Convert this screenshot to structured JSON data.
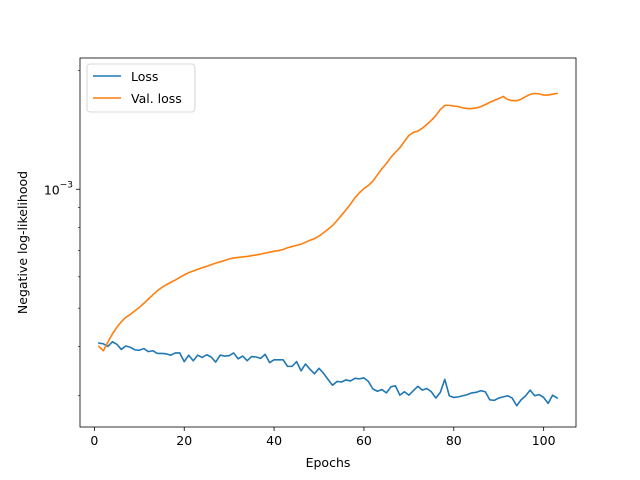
{
  "chart_data": {
    "type": "line",
    "title": "",
    "xlabel": "Epochs",
    "ylabel": "Negative log-likelihood",
    "yscale": "log",
    "xlim": [
      -3.2,
      107.2
    ],
    "ylim": [
      0.00025,
      0.00215
    ],
    "xticks": [
      0,
      20,
      40,
      60,
      80,
      100
    ],
    "xtick_labels": [
      "0",
      "20",
      "40",
      "60",
      "80",
      "100"
    ],
    "yticks": [
      0.001
    ],
    "ytick_labels": [
      {
        "base": "10",
        "exp": "−3"
      }
    ],
    "grid": false,
    "legend_position": "upper-left",
    "series": [
      {
        "name": "Loss",
        "color": "#1f77b4",
        "x": [
          1,
          2,
          3,
          4,
          5,
          6,
          7,
          8,
          9,
          10,
          11,
          12,
          13,
          14,
          15,
          16,
          17,
          18,
          19,
          20,
          21,
          22,
          23,
          24,
          25,
          26,
          27,
          28,
          29,
          30,
          31,
          32,
          33,
          34,
          35,
          36,
          37,
          38,
          39,
          40,
          41,
          42,
          43,
          44,
          45,
          46,
          47,
          48,
          49,
          50,
          51,
          52,
          53,
          54,
          55,
          56,
          57,
          58,
          59,
          60,
          61,
          62,
          63,
          64,
          65,
          66,
          67,
          68,
          69,
          70,
          71,
          72,
          73,
          74,
          75,
          76,
          77,
          78,
          79,
          80,
          81,
          82,
          83,
          84,
          85,
          86,
          87,
          88,
          89,
          90,
          91,
          92,
          93,
          94,
          95,
          96,
          97,
          98,
          99,
          100,
          101,
          102,
          103
        ],
        "values": [
          0.000408,
          0.000406,
          0.0004,
          0.000411,
          0.000405,
          0.000393,
          0.000401,
          0.000398,
          0.000392,
          0.000391,
          0.000395,
          0.000388,
          0.00039,
          0.000384,
          0.000384,
          0.000383,
          0.00038,
          0.000385,
          0.000385,
          0.000366,
          0.00038,
          0.000368,
          0.00038,
          0.000375,
          0.000381,
          0.000376,
          0.000365,
          0.00038,
          0.000378,
          0.000379,
          0.000385,
          0.000372,
          0.000378,
          0.000368,
          0.000377,
          0.000376,
          0.000373,
          0.000382,
          0.000364,
          0.00037,
          0.00037,
          0.00037,
          0.000356,
          0.000356,
          0.000366,
          0.000347,
          0.000361,
          0.00035,
          0.000341,
          0.000352,
          0.000342,
          0.00033,
          0.000319,
          0.000326,
          0.000325,
          0.000329,
          0.000327,
          0.000332,
          0.000331,
          0.000333,
          0.000326,
          0.000312,
          0.000308,
          0.000311,
          0.000305,
          0.000316,
          0.000318,
          0.000301,
          0.000307,
          0.000301,
          0.000309,
          0.000317,
          0.00031,
          0.000313,
          0.000307,
          0.000296,
          0.000306,
          0.00033,
          0.0003,
          0.000297,
          0.000298,
          0.0003,
          0.000302,
          0.000305,
          0.000306,
          0.000309,
          0.000307,
          0.000293,
          0.000292,
          0.000296,
          0.000298,
          0.0003,
          0.000296,
          0.000283,
          0.000293,
          0.0003,
          0.00031,
          0.0003,
          0.000302,
          0.000297,
          0.000287,
          0.000301,
          0.000296
        ]
      },
      {
        "name": "Val. loss",
        "color": "#ff7f0e",
        "x": [
          1,
          2,
          3,
          4,
          5,
          6,
          7,
          8,
          9,
          10,
          11,
          12,
          13,
          14,
          15,
          16,
          17,
          18,
          19,
          20,
          21,
          22,
          23,
          24,
          25,
          26,
          27,
          28,
          29,
          30,
          31,
          32,
          33,
          34,
          35,
          36,
          37,
          38,
          39,
          40,
          41,
          42,
          43,
          44,
          45,
          46,
          47,
          48,
          49,
          50,
          51,
          52,
          53,
          54,
          55,
          56,
          57,
          58,
          59,
          60,
          61,
          62,
          63,
          64,
          65,
          66,
          67,
          68,
          69,
          70,
          71,
          72,
          73,
          74,
          75,
          76,
          77,
          78,
          79,
          80,
          81,
          82,
          83,
          84,
          85,
          86,
          87,
          88,
          89,
          90,
          91,
          92,
          93,
          94,
          95,
          96,
          97,
          98,
          99,
          100,
          101,
          102,
          103
        ],
        "values": [
          0.0004,
          0.00039,
          0.00041,
          0.00043,
          0.000447,
          0.000462,
          0.000474,
          0.000482,
          0.000492,
          0.000502,
          0.000514,
          0.000527,
          0.00054,
          0.000553,
          0.000564,
          0.000573,
          0.000581,
          0.000589,
          0.000598,
          0.000607,
          0.000615,
          0.000621,
          0.000627,
          0.000633,
          0.000638,
          0.000644,
          0.00065,
          0.000655,
          0.00066,
          0.000666,
          0.00067,
          0.000672,
          0.000674,
          0.000676,
          0.000679,
          0.000682,
          0.000685,
          0.000689,
          0.000693,
          0.000697,
          0.000699,
          0.000704,
          0.000711,
          0.000716,
          0.000721,
          0.000726,
          0.000734,
          0.000743,
          0.00075,
          0.000761,
          0.000776,
          0.000792,
          0.000809,
          0.000833,
          0.000859,
          0.000887,
          0.000917,
          0.000952,
          0.00098,
          0.001004,
          0.001023,
          0.001049,
          0.001088,
          0.001127,
          0.001162,
          0.001205,
          0.00124,
          0.001274,
          0.001321,
          0.001369,
          0.001393,
          0.001404,
          0.001428,
          0.001459,
          0.001495,
          0.001537,
          0.001592,
          0.001631,
          0.001631,
          0.001625,
          0.00162,
          0.001607,
          0.001601,
          0.001601,
          0.001607,
          0.001619,
          0.001638,
          0.00166,
          0.001679,
          0.001697,
          0.001718,
          0.001688,
          0.001677,
          0.001676,
          0.001692,
          0.001717,
          0.001739,
          0.001749,
          0.001744,
          0.001732,
          0.001732,
          0.001741,
          0.001749
        ]
      }
    ]
  }
}
